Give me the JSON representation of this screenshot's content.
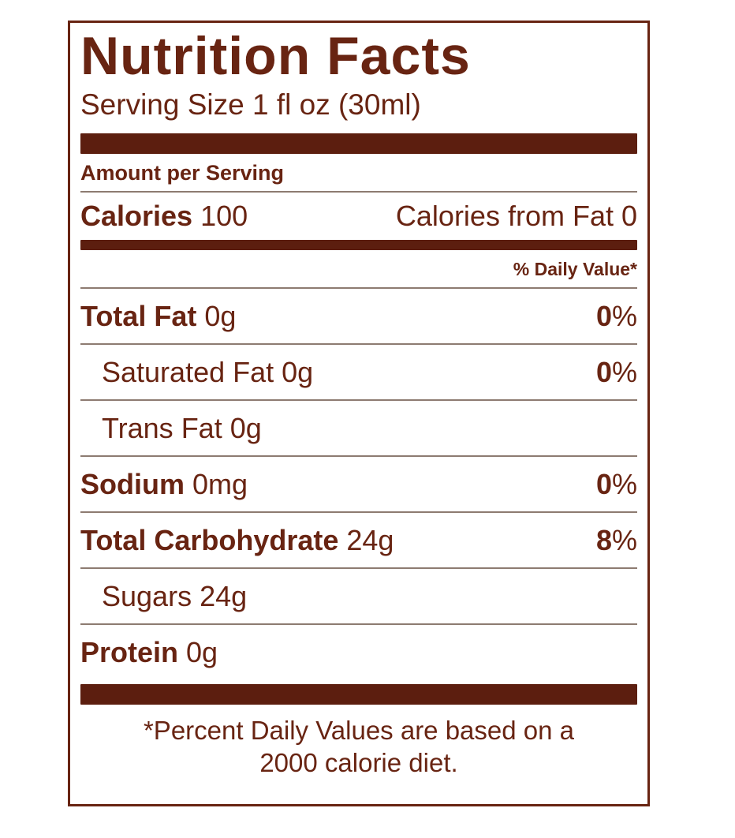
{
  "label": {
    "title": "Nutrition Facts",
    "serving_size": "Serving Size 1 fl oz (30ml)",
    "amount_per_serving": "Amount per Serving",
    "calories_label": "Calories",
    "calories_value": "100",
    "calories_from_fat": "Calories from Fat 0",
    "daily_value_header": "% Daily Value*",
    "rows": [
      {
        "name": "Total Fat",
        "amount": "0g",
        "dv": "0%",
        "bold": true,
        "indent": false
      },
      {
        "name": "Saturated Fat",
        "amount": "0g",
        "dv": "0%",
        "bold": false,
        "indent": true
      },
      {
        "name": "Trans Fat",
        "amount": "0g",
        "dv": "",
        "bold": false,
        "indent": true
      },
      {
        "name": "Sodium",
        "amount": "0mg",
        "dv": "0%",
        "bold": true,
        "indent": false
      },
      {
        "name": "Total Carbohydrate",
        "amount": "24g",
        "dv": "8%",
        "bold": true,
        "indent": false
      },
      {
        "name": "Sugars",
        "amount": "24g",
        "dv": "",
        "bold": false,
        "indent": true
      },
      {
        "name": "Protein",
        "amount": "0g",
        "dv": "",
        "bold": true,
        "indent": false
      }
    ],
    "footnote_line1": "*Percent Daily Values are based on a",
    "footnote_line2": "2000 calorie diet.",
    "colors": {
      "text": "#682412",
      "bar": "#5c1e0f",
      "hairline": "#8d7b71"
    }
  }
}
